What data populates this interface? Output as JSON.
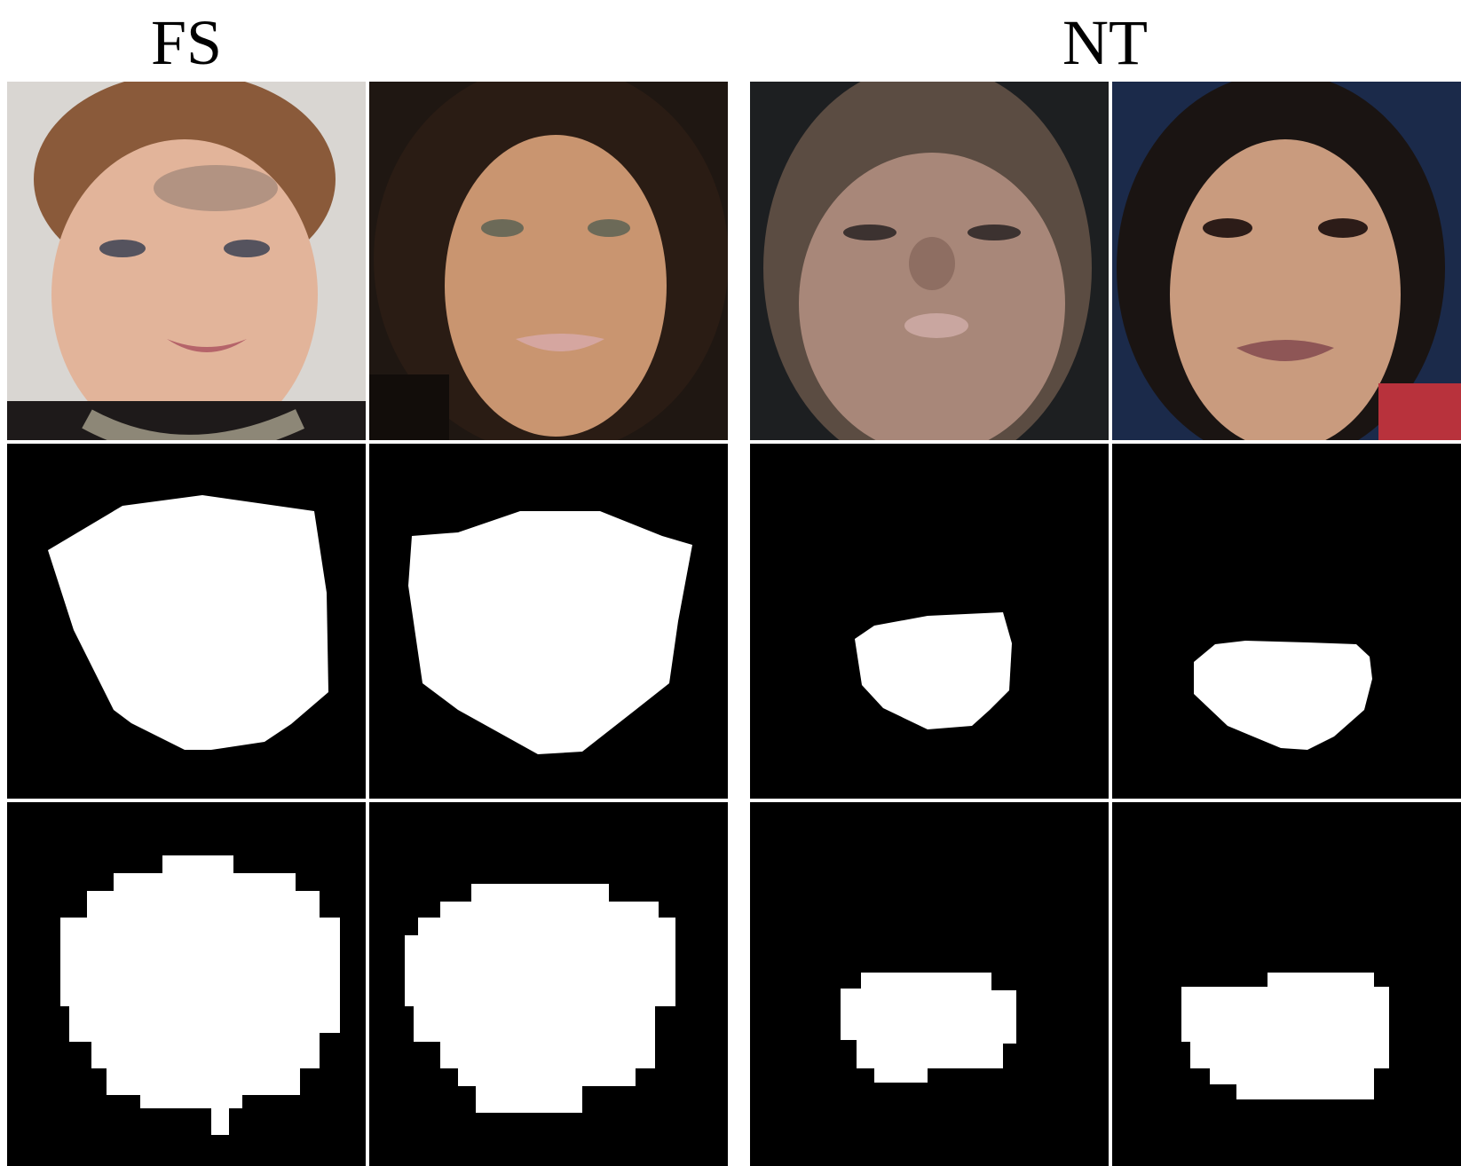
{
  "groups": [
    {
      "label": "FS"
    },
    {
      "label": "NT"
    }
  ],
  "rows": [
    "input-face",
    "ground-truth-mask",
    "predicted-mask"
  ],
  "colors": {
    "background": "#ffffff",
    "mask_background": "#000000",
    "mask_foreground": "#ffffff"
  }
}
